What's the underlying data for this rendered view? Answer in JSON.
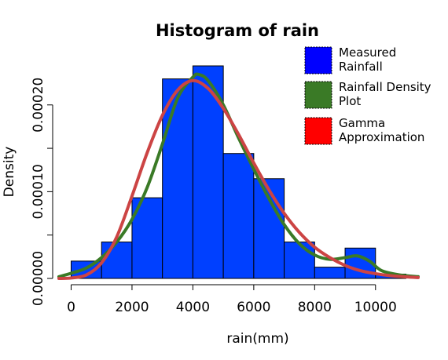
{
  "chart_data": {
    "type": "bar",
    "title": "Histogram of rain",
    "xlabel": "rain(mm)",
    "ylabel": "Density",
    "xlim": [
      -400,
      11400
    ],
    "ylim": [
      0,
      0.000245
    ],
    "x_ticks": [
      0,
      2000,
      4000,
      6000,
      8000,
      10000
    ],
    "x_tick_labels": [
      "0",
      "2000",
      "4000",
      "6000",
      "8000",
      "10000"
    ],
    "y_ticks": [
      0,
      5e-05,
      0.0001,
      0.00015,
      0.0002
    ],
    "y_tick_labels": [
      "0.00000",
      "",
      "0.00010",
      "",
      "0.00020"
    ],
    "grid": false,
    "legend_position": "top-right",
    "bins": [
      {
        "start": 0,
        "end": 1000,
        "density": 2e-05
      },
      {
        "start": 1000,
        "end": 2000,
        "density": 4.2e-05
      },
      {
        "start": 2000,
        "end": 3000,
        "density": 9.3e-05
      },
      {
        "start": 3000,
        "end": 4000,
        "density": 0.00023
      },
      {
        "start": 4000,
        "end": 5000,
        "density": 0.000245
      },
      {
        "start": 5000,
        "end": 6000,
        "density": 0.000144
      },
      {
        "start": 6000,
        "end": 7000,
        "density": 0.000115
      },
      {
        "start": 7000,
        "end": 8000,
        "density": 4.2e-05
      },
      {
        "start": 8000,
        "end": 9000,
        "density": 1.3e-05
      },
      {
        "start": 9000,
        "end": 10000,
        "density": 3.5e-05
      },
      {
        "start": 10000,
        "end": 11000,
        "density": 5e-06
      }
    ],
    "series": [
      {
        "name": "Measured\nRainfall",
        "kind": "histogram",
        "color": "#0040ff"
      },
      {
        "name": "Rainfall Density\nPlot",
        "kind": "line",
        "color": "#3a7a26",
        "points": [
          [
            -400,
            2e-06
          ],
          [
            0,
            6e-06
          ],
          [
            500,
            1.2e-05
          ],
          [
            1000,
            2.4e-05
          ],
          [
            1500,
            4.2e-05
          ],
          [
            2000,
            6.8e-05
          ],
          [
            2500,
            0.000105
          ],
          [
            3000,
            0.000155
          ],
          [
            3500,
            0.000208
          ],
          [
            4000,
            0.000232
          ],
          [
            4200,
            0.000235
          ],
          [
            4500,
            0.000228
          ],
          [
            5000,
            0.0002
          ],
          [
            5500,
            0.000162
          ],
          [
            6000,
            0.000126
          ],
          [
            6500,
            9.2e-05
          ],
          [
            7000,
            6.2e-05
          ],
          [
            7500,
            4e-05
          ],
          [
            8000,
            2.7e-05
          ],
          [
            8500,
            2.2e-05
          ],
          [
            9000,
            2.4e-05
          ],
          [
            9400,
            2.6e-05
          ],
          [
            9800,
            2e-05
          ],
          [
            10200,
            9e-06
          ],
          [
            10800,
            4e-06
          ],
          [
            11400,
            2e-06
          ]
        ]
      },
      {
        "name": "Gamma\nApproximation",
        "kind": "line",
        "color": "#cc4444",
        "points": [
          [
            -400,
            0.0
          ],
          [
            0,
            5e-07
          ],
          [
            500,
            4e-06
          ],
          [
            1000,
            1.8e-05
          ],
          [
            1500,
            4.8e-05
          ],
          [
            2000,
            9.5e-05
          ],
          [
            2500,
            0.000145
          ],
          [
            3000,
            0.000188
          ],
          [
            3500,
            0.000217
          ],
          [
            4000,
            0.000228
          ],
          [
            4500,
            0.000219
          ],
          [
            5000,
            0.000196
          ],
          [
            5500,
            0.000166
          ],
          [
            6000,
            0.000133
          ],
          [
            6500,
            0.000102
          ],
          [
            7000,
            7.5e-05
          ],
          [
            7500,
            5.3e-05
          ],
          [
            8000,
            3.6e-05
          ],
          [
            8500,
            2.4e-05
          ],
          [
            9000,
            1.5e-05
          ],
          [
            9500,
            9e-06
          ],
          [
            10000,
            5.5e-06
          ],
          [
            10500,
            3.2e-06
          ],
          [
            11000,
            1.8e-06
          ],
          [
            11400,
            1e-06
          ]
        ]
      }
    ]
  }
}
